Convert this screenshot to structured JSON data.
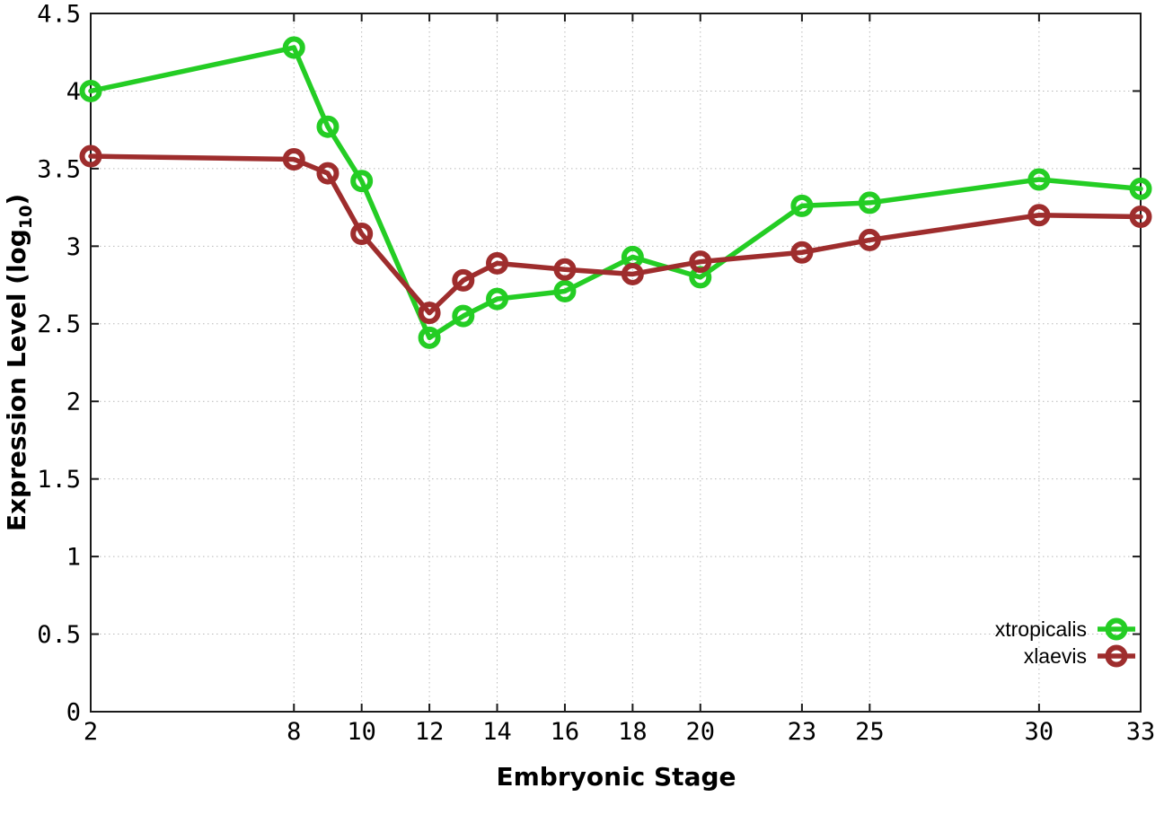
{
  "chart_data": {
    "type": "line",
    "title": "",
    "xlabel": "Embryonic Stage",
    "ylabel": "Expression Level (log10)",
    "ylabel_parts": {
      "main": "Expression Level (log",
      "sub": "10",
      "close": ")"
    },
    "xlim": [
      2,
      33
    ],
    "ylim": [
      0,
      4.5
    ],
    "grid": true,
    "legend_position": "bottom-right-inside",
    "x": [
      2,
      8,
      9,
      10,
      12,
      13,
      14,
      16,
      18,
      20,
      23,
      25,
      30,
      33
    ],
    "xtick_labels": [
      "2",
      "8",
      "10",
      "12",
      "14",
      "16",
      "18",
      "20",
      "23",
      "25",
      "30",
      "33"
    ],
    "xtick_values": [
      2,
      8,
      10,
      12,
      14,
      16,
      18,
      20,
      23,
      25,
      30,
      33
    ],
    "ytick_labels": [
      "0",
      "0.5",
      "1",
      "1.5",
      "2",
      "2.5",
      "3",
      "3.5",
      "4",
      "4.5"
    ],
    "ytick_values": [
      0,
      0.5,
      1,
      1.5,
      2,
      2.5,
      3,
      3.5,
      4,
      4.5
    ],
    "series": [
      {
        "name": "xtropicalis",
        "color": "#24cd24",
        "marker": "open-circle",
        "values": [
          4.0,
          4.28,
          3.77,
          3.42,
          2.41,
          2.55,
          2.66,
          2.71,
          2.93,
          2.8,
          3.26,
          3.28,
          3.43,
          3.37
        ]
      },
      {
        "name": "xlaevis",
        "color": "#9e2d2d",
        "marker": "open-circle",
        "values": [
          3.58,
          3.56,
          3.47,
          3.08,
          2.57,
          2.78,
          2.89,
          2.85,
          2.82,
          2.9,
          2.96,
          3.04,
          3.2,
          3.19
        ]
      }
    ]
  }
}
